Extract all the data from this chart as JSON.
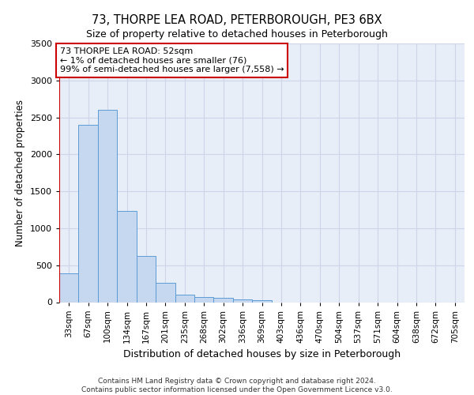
{
  "title1": "73, THORPE LEA ROAD, PETERBOROUGH, PE3 6BX",
  "title2": "Size of property relative to detached houses in Peterborough",
  "xlabel": "Distribution of detached houses by size in Peterborough",
  "ylabel": "Number of detached properties",
  "footer1": "Contains HM Land Registry data © Crown copyright and database right 2024.",
  "footer2": "Contains public sector information licensed under the Open Government Licence v3.0.",
  "annotation_line1": "73 THORPE LEA ROAD: 52sqm",
  "annotation_line2": "← 1% of detached houses are smaller (76)",
  "annotation_line3": "99% of semi-detached houses are larger (7,558) →",
  "bar_labels": [
    "33sqm",
    "67sqm",
    "100sqm",
    "134sqm",
    "167sqm",
    "201sqm",
    "235sqm",
    "268sqm",
    "302sqm",
    "336sqm",
    "369sqm",
    "403sqm",
    "436sqm",
    "470sqm",
    "504sqm",
    "537sqm",
    "571sqm",
    "604sqm",
    "638sqm",
    "672sqm",
    "705sqm"
  ],
  "bar_values": [
    390,
    2400,
    2600,
    1230,
    630,
    260,
    105,
    65,
    55,
    40,
    30,
    0,
    0,
    0,
    0,
    0,
    0,
    0,
    0,
    0,
    0
  ],
  "bar_color": "#c5d8ef",
  "bar_edge_color": "#5b9bd5",
  "grid_color": "#ccd6e8",
  "background_color": "#e8eef8",
  "marker_color": "#cc0000",
  "ylim": [
    0,
    3500
  ],
  "yticks": [
    0,
    500,
    1000,
    1500,
    2000,
    2500,
    3000,
    3500
  ],
  "title1_fontsize": 10.5,
  "title2_fontsize": 9,
  "ylabel_fontsize": 8.5,
  "xlabel_fontsize": 9,
  "tick_fontsize": 8,
  "xtick_fontsize": 7.5,
  "footer_fontsize": 6.5,
  "ann_fontsize": 8
}
